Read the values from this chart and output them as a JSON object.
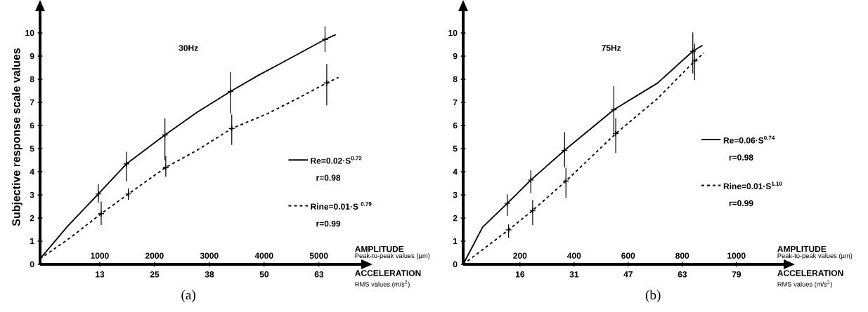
{
  "chart_data": [
    {
      "type": "line",
      "title": "30Hz",
      "ylabel": "Subjective response scale values",
      "xlabel": "AMPLITUDE",
      "x2label": "ACCELERATION",
      "xlim": [
        -90,
        5800
      ],
      "xticks": [
        1000,
        2000,
        3000,
        4000,
        5000
      ],
      "x2lim": [
        -1.13,
        72.8
      ],
      "x2ticks": [
        {
          "value": 12.56,
          "label": "13"
        },
        {
          "value": 25.12,
          "label": "25"
        },
        {
          "value": 37.68,
          "label": "38"
        },
        {
          "value": 50.24,
          "label": "50"
        },
        {
          "value": 62.8,
          "label": "63"
        }
      ],
      "ylim": [
        0,
        11
      ],
      "yticks": [
        0,
        1,
        2,
        3,
        4,
        5,
        6,
        7,
        8,
        9,
        10
      ],
      "legend": "bottom right",
      "annotations": [
        "Peak-to-peak values (µm)",
        "RMS values (m/s$^{2}$)",
        "r=0.98",
        "r=0.99",
        "(a)"
      ],
      "series": [
        {
          "name": "Re=0.02·S$^{0.72}$",
          "line_style": "solid",
          "color": "#000000",
          "x": [
            -90,
            410,
            974,
            1487,
            2190,
            2769,
            3385,
            3897,
            4308,
            5113,
            5308
          ],
          "values": [
            0.24,
            1.64,
            3.04,
            4.34,
            5.59,
            6.56,
            7.47,
            8.17,
            8.69,
            9.72,
            9.93
          ]
        },
        {
          "type": "scatter",
          "marker": "cross",
          "color": "#000000",
          "x": [
            974,
            1487,
            2190,
            3385,
            5113
          ],
          "values": [
            3.04,
            4.34,
            5.59,
            7.47,
            9.72
          ],
          "errors": [
            [
              2.67,
              3.47
            ],
            [
              3.58,
              4.86
            ],
            [
              4.5,
              6.32
            ],
            [
              6.52,
              8.3
            ],
            [
              9.17,
              10.29
            ]
          ]
        },
        {
          "name": "Rine=0.01·S $^{0.79}$",
          "line_style": "dashed",
          "color": "#000000",
          "x": [
            -90,
            462,
            1026,
            1523,
            2205,
            2769,
            3410,
            4051,
            4564,
            5144,
            5359
          ],
          "values": [
            0.24,
            1.15,
            2.19,
            3.04,
            4.19,
            4.92,
            5.87,
            6.5,
            7.11,
            7.84,
            8.08
          ]
        },
        {
          "type": "scatter",
          "marker": "cross",
          "color": "#000000",
          "x": [
            1026,
            1523,
            2205,
            3410,
            5144
          ],
          "values": [
            2.19,
            3.04,
            4.19,
            5.87,
            7.84
          ],
          "errors": [
            [
              1.7,
              2.71
            ],
            [
              2.79,
              3.28
            ],
            [
              3.79,
              4.68
            ],
            [
              5.16,
              6.48
            ],
            [
              6.87,
              8.66
            ]
          ]
        }
      ]
    },
    {
      "type": "line",
      "title": "75Hz",
      "xlabel": "AMPLITUDE",
      "x2label": "ACCELERATION",
      "xlim": [
        -10,
        1180
      ],
      "xticks": [
        200,
        400,
        600,
        800,
        1000
      ],
      "x2lim": [
        -0.785,
        92.6
      ],
      "x2ticks": [
        {
          "value": 15.7,
          "label": "16"
        },
        {
          "value": 31.4,
          "label": "31"
        },
        {
          "value": 47.1,
          "label": "47"
        },
        {
          "value": 62.8,
          "label": "63"
        },
        {
          "value": 78.5,
          "label": "79"
        }
      ],
      "ylim": [
        0,
        11
      ],
      "yticks": [
        0,
        1,
        2,
        3,
        4,
        5,
        6,
        7,
        8,
        9,
        10
      ],
      "legend": "right",
      "annotations": [
        "Peak-to-peak values (µm)",
        "RMS values (m/s$^{2}$)",
        "r=0.98",
        "r=0.99",
        "(b)"
      ],
      "series": [
        {
          "name": "Re=0.06·S$^{0.74}$",
          "line_style": "solid",
          "color": "#000000",
          "x": [
            -10,
            62,
            153,
            240,
            365,
            547,
            708,
            839,
            875
          ],
          "values": [
            0,
            1.61,
            2.63,
            3.64,
            4.93,
            6.68,
            7.83,
            9.21,
            9.46
          ]
        },
        {
          "type": "scatter",
          "marker": "cross",
          "color": "#000000",
          "x": [
            153,
            240,
            365,
            547,
            839
          ],
          "values": [
            2.63,
            3.64,
            4.93,
            6.68,
            9.21
          ],
          "errors": [
            [
              2.09,
              3.02
            ],
            [
              3.08,
              4.06
            ],
            [
              4.2,
              5.71
            ],
            [
              5.7,
              7.7
            ],
            [
              8.25,
              10.02
            ]
          ]
        },
        {
          "name": "Rine=0.01·S$^{1.10}$",
          "line_style": "dashed",
          "color": "#000000",
          "x": [
            -10,
            83,
            158,
            247,
            370,
            554,
            708,
            846,
            880
          ],
          "values": [
            0,
            0.82,
            1.49,
            2.33,
            3.6,
            5.65,
            7.16,
            8.79,
            9.13
          ]
        },
        {
          "type": "scatter",
          "marker": "cross",
          "color": "#000000",
          "x": [
            158,
            247,
            370,
            554,
            846
          ],
          "values": [
            1.49,
            2.33,
            3.6,
            5.65,
            8.79
          ],
          "errors": [
            [
              1.15,
              1.73
            ],
            [
              1.7,
              2.78
            ],
            [
              2.87,
              4.18
            ],
            [
              4.81,
              6.32
            ],
            [
              7.97,
              9.54
            ]
          ]
        }
      ]
    }
  ]
}
